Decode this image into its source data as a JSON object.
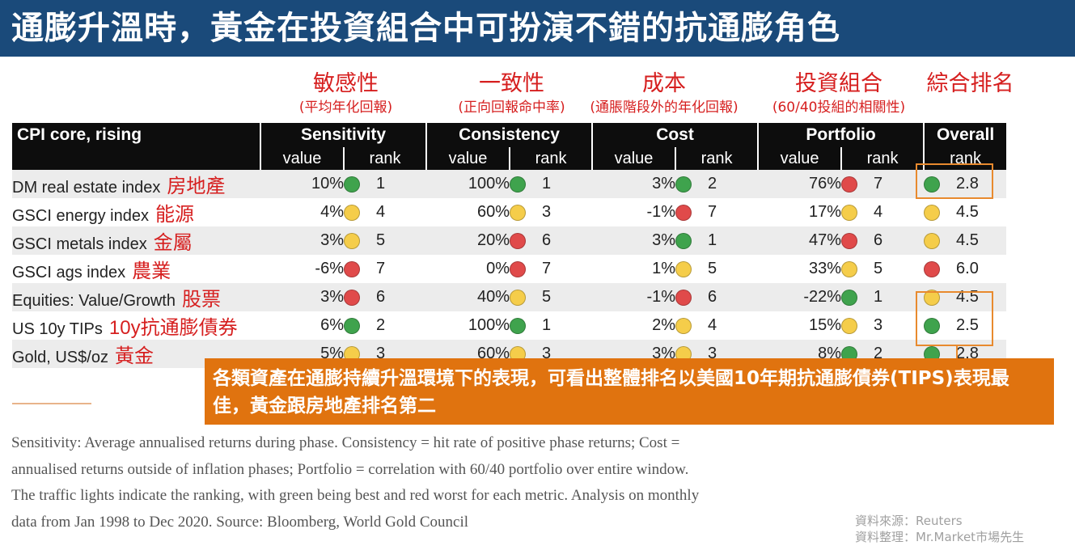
{
  "title": "通膨升溫時，黃金在投資組合中可扮演不錯的抗通膨角色",
  "cn_headers": [
    {
      "main": "敏感性",
      "sub": "(平均年化回報)"
    },
    {
      "main": "一致性",
      "sub": "(正向回報命中率)"
    },
    {
      "main": "成本",
      "sub": "(通脹階段外的年化回報)"
    },
    {
      "main": "投資組合",
      "sub": "(60/40投組的相關性)"
    },
    {
      "main": "綜合排名",
      "sub": ""
    }
  ],
  "table": {
    "corner": "CPI core, rising",
    "groups": [
      "Sensitivity",
      "Consistency",
      "Cost",
      "Portfolio",
      "Overall"
    ],
    "value_label": "value",
    "rank_label": "rank",
    "colors": {
      "green": "#3fa34d",
      "yellow": "#f5cd4a",
      "red": "#e04a4a"
    },
    "rows": [
      {
        "name": "DM real estate index",
        "cn": "房地產",
        "cells": [
          {
            "value": "10%",
            "rank": "1",
            "color": "green"
          },
          {
            "value": "100%",
            "rank": "1",
            "color": "green"
          },
          {
            "value": "3%",
            "rank": "2",
            "color": "green"
          },
          {
            "value": "76%",
            "rank": "7",
            "color": "red"
          }
        ],
        "overall": {
          "rank": "2.8",
          "color": "green"
        }
      },
      {
        "name": "GSCI energy index",
        "cn": "能源",
        "cells": [
          {
            "value": "4%",
            "rank": "4",
            "color": "yellow"
          },
          {
            "value": "60%",
            "rank": "3",
            "color": "yellow"
          },
          {
            "value": "-1%",
            "rank": "7",
            "color": "red"
          },
          {
            "value": "17%",
            "rank": "4",
            "color": "yellow"
          }
        ],
        "overall": {
          "rank": "4.5",
          "color": "yellow"
        }
      },
      {
        "name": "GSCI metals index",
        "cn": "金屬",
        "cells": [
          {
            "value": "3%",
            "rank": "5",
            "color": "yellow"
          },
          {
            "value": "20%",
            "rank": "6",
            "color": "red"
          },
          {
            "value": "3%",
            "rank": "1",
            "color": "green"
          },
          {
            "value": "47%",
            "rank": "6",
            "color": "red"
          }
        ],
        "overall": {
          "rank": "4.5",
          "color": "yellow"
        }
      },
      {
        "name": "GSCI ags index",
        "cn": "農業",
        "cells": [
          {
            "value": "-6%",
            "rank": "7",
            "color": "red"
          },
          {
            "value": "0%",
            "rank": "7",
            "color": "red"
          },
          {
            "value": "1%",
            "rank": "5",
            "color": "yellow"
          },
          {
            "value": "33%",
            "rank": "5",
            "color": "yellow"
          }
        ],
        "overall": {
          "rank": "6.0",
          "color": "red"
        }
      },
      {
        "name": "Equities: Value/Growth",
        "cn": "股票",
        "cells": [
          {
            "value": "3%",
            "rank": "6",
            "color": "red"
          },
          {
            "value": "40%",
            "rank": "5",
            "color": "yellow"
          },
          {
            "value": "-1%",
            "rank": "6",
            "color": "red"
          },
          {
            "value": "-22%",
            "rank": "1",
            "color": "green"
          }
        ],
        "overall": {
          "rank": "4.5",
          "color": "yellow"
        }
      },
      {
        "name": "US 10y TIPs",
        "cn": "10y抗通膨債券",
        "cells": [
          {
            "value": "6%",
            "rank": "2",
            "color": "green"
          },
          {
            "value": "100%",
            "rank": "1",
            "color": "green"
          },
          {
            "value": "2%",
            "rank": "4",
            "color": "yellow"
          },
          {
            "value": "15%",
            "rank": "3",
            "color": "yellow"
          }
        ],
        "overall": {
          "rank": "2.5",
          "color": "green"
        }
      },
      {
        "name": "Gold, US$/oz",
        "cn": "黃金",
        "cells": [
          {
            "value": "5%",
            "rank": "3",
            "color": "yellow"
          },
          {
            "value": "60%",
            "rank": "3",
            "color": "yellow"
          },
          {
            "value": "3%",
            "rank": "3",
            "color": "yellow"
          },
          {
            "value": "8%",
            "rank": "2",
            "color": "green"
          }
        ],
        "overall": {
          "rank": "2.8",
          "color": "green"
        }
      }
    ]
  },
  "callout": "各類資產在通膨持續升溫環境下的表現，可看出整體排名以美國10年期抗通膨債券(TIPS)表現最佳，黃金跟房地產排名第二",
  "footnote": [
    "Sensitivity: Average annualised returns during phase. Consistency = hit rate of positive phase returns; Cost =",
    "annualised returns outside of inflation phases; Portfolio = correlation with 60/40 portfolio over entire window.",
    "The traffic lights indicate the ranking, with green being best and red worst for each metric. Analysis on monthly",
    "data from Jan 1998 to Dec 2020. Source: Bloomberg, World Gold Council"
  ],
  "source_lines": [
    "資料來源：Reuters",
    "資料整理：Mr.Market市場先生"
  ]
}
